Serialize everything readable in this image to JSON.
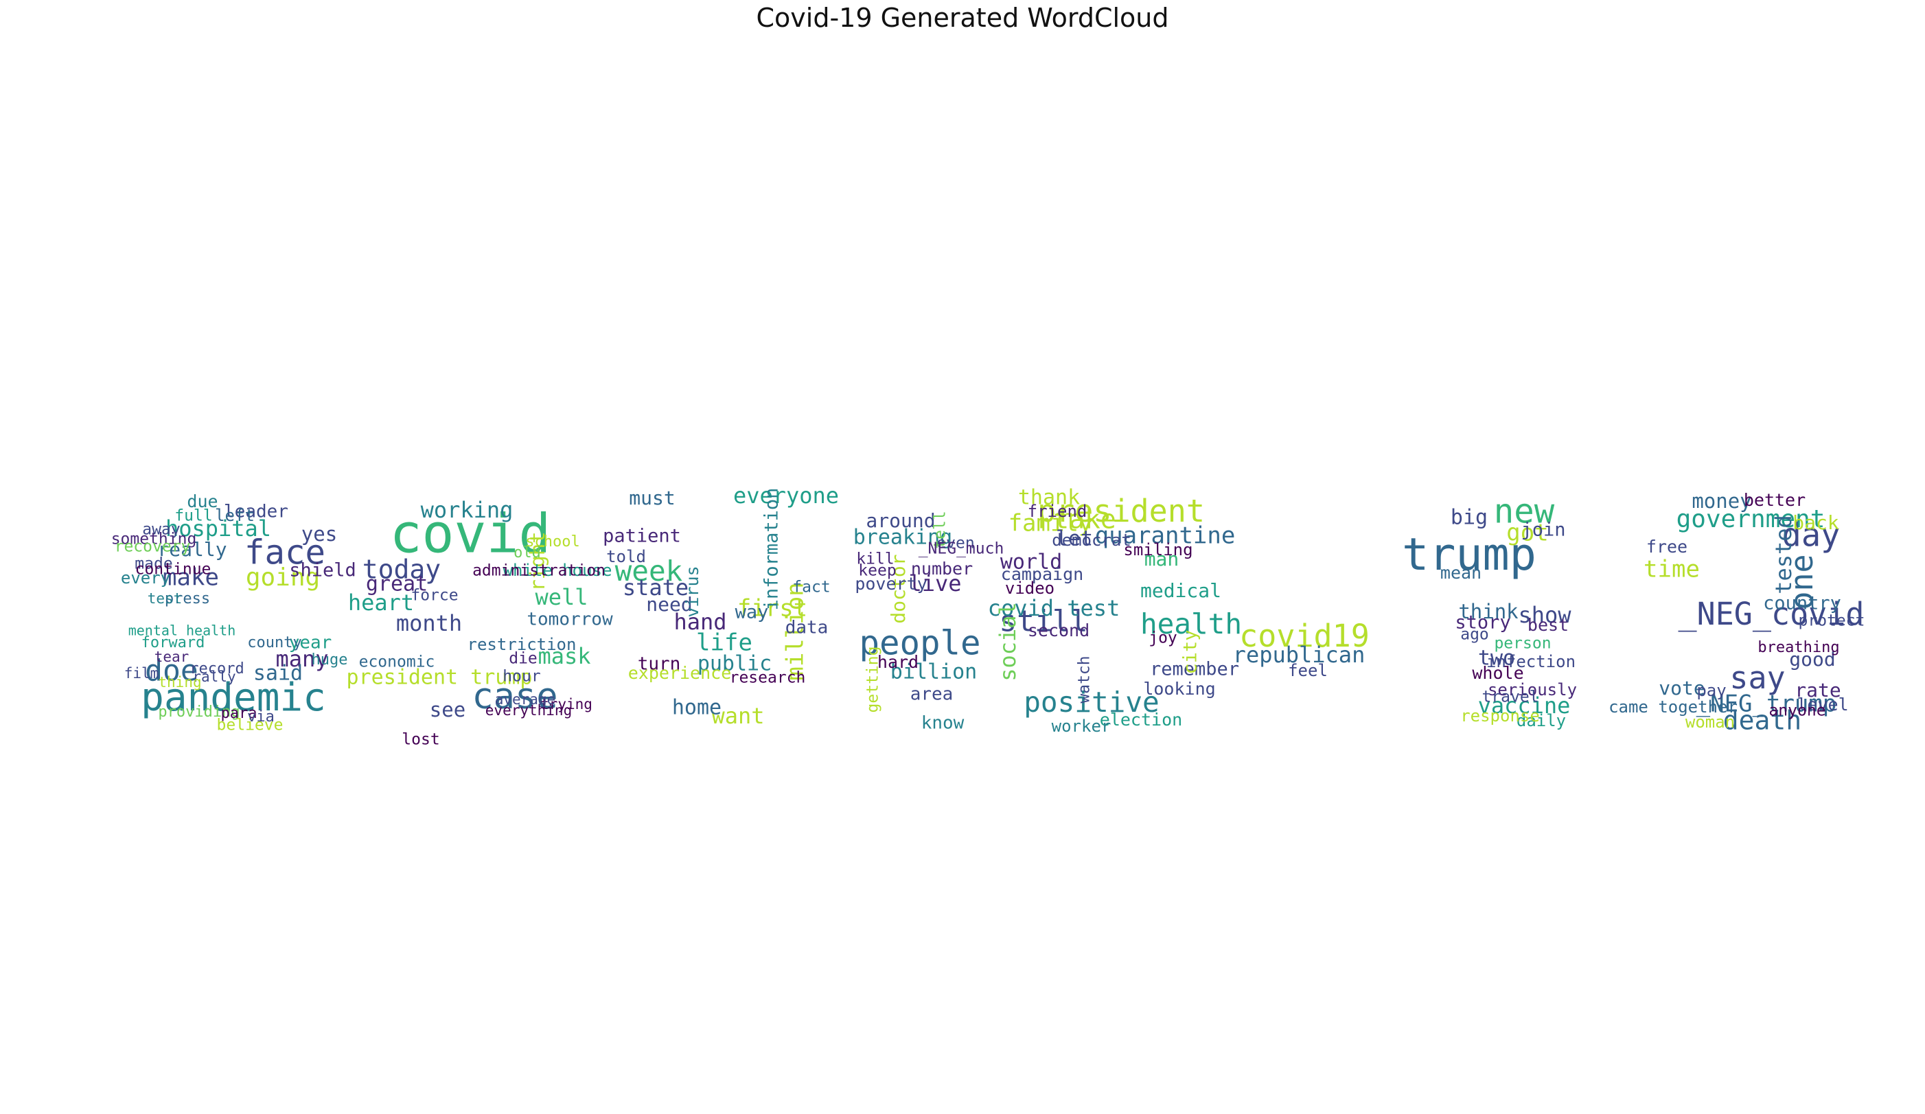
{
  "title": "Covid-19 Generated WordCloud",
  "palette": [
    "#440154",
    "#482878",
    "#3e4989",
    "#31688e",
    "#26828e",
    "#1f9e89",
    "#35b779",
    "#6ece58",
    "#b5de2b",
    "#fde725"
  ],
  "chart_data": {
    "type": "wordcloud",
    "title": "Covid-19 Generated WordCloud",
    "shape_text": "Covid-19",
    "words": [
      {
        "text": "pandemic",
        "weight": 1.0,
        "color": "#26828e"
      },
      {
        "text": "face",
        "weight": 0.85,
        "color": "#3e4989"
      },
      {
        "text": "doe",
        "weight": 0.7,
        "color": "#31688e"
      },
      {
        "text": "going",
        "weight": 0.55,
        "color": "#b5de2b"
      },
      {
        "text": "make",
        "weight": 0.5,
        "color": "#3e4989"
      },
      {
        "text": "hospital",
        "weight": 0.45,
        "color": "#1f9e89"
      },
      {
        "text": "many",
        "weight": 0.45,
        "color": "#482878"
      },
      {
        "text": "said",
        "weight": 0.42,
        "color": "#31688e"
      },
      {
        "text": "yes",
        "weight": 0.38,
        "color": "#3e4989"
      },
      {
        "text": "really",
        "weight": 0.36,
        "color": "#31688e"
      },
      {
        "text": "shield",
        "weight": 0.34,
        "color": "#482878"
      },
      {
        "text": "leader",
        "weight": 0.32,
        "color": "#3e4989"
      },
      {
        "text": "year",
        "weight": 0.32,
        "color": "#1f9e89"
      },
      {
        "text": "due",
        "weight": 0.3,
        "color": "#26828e"
      },
      {
        "text": "left",
        "weight": 0.28,
        "color": "#31688e"
      },
      {
        "text": "every",
        "weight": 0.28,
        "color": "#26828e"
      },
      {
        "text": "away",
        "weight": 0.26,
        "color": "#3e4989"
      },
      {
        "text": "full",
        "weight": 0.26,
        "color": "#1f9e89"
      },
      {
        "text": "something",
        "weight": 0.25,
        "color": "#482878"
      },
      {
        "text": "recovery",
        "weight": 0.25,
        "color": "#6ece58"
      },
      {
        "text": "made",
        "weight": 0.24,
        "color": "#3e4989"
      },
      {
        "text": "continue",
        "weight": 0.24,
        "color": "#440154"
      },
      {
        "text": "press",
        "weight": 0.22,
        "color": "#31688e"
      },
      {
        "text": "forward",
        "weight": 0.22,
        "color": "#1f9e89"
      },
      {
        "text": "record",
        "weight": 0.22,
        "color": "#3e4989"
      },
      {
        "text": "providing",
        "weight": 0.22,
        "color": "#6ece58"
      },
      {
        "text": "believe",
        "weight": 0.24,
        "color": "#b5de2b"
      },
      {
        "text": "para",
        "weight": 0.22,
        "color": "#440154"
      },
      {
        "text": "via",
        "weight": 0.22,
        "color": "#3e4989"
      },
      {
        "text": "huge",
        "weight": 0.22,
        "color": "#26828e"
      },
      {
        "text": "county",
        "weight": 0.22,
        "color": "#31688e"
      },
      {
        "text": "rally",
        "weight": 0.2,
        "color": "#3e4989"
      },
      {
        "text": "thing",
        "weight": 0.2,
        "color": "#b5de2b"
      },
      {
        "text": "test",
        "weight": 0.2,
        "color": "#26828e"
      },
      {
        "text": "tear",
        "weight": 0.2,
        "color": "#482878"
      },
      {
        "text": "film",
        "weight": 0.2,
        "color": "#3e4989"
      },
      {
        "text": "mental health",
        "weight": 0.18,
        "color": "#1f9e89"
      },
      {
        "text": "covid",
        "weight": 1.5,
        "color": "#35b779"
      },
      {
        "text": "case",
        "weight": 0.9,
        "color": "#31688e"
      },
      {
        "text": "today",
        "weight": 0.6,
        "color": "#3e4989"
      },
      {
        "text": "working",
        "weight": 0.45,
        "color": "#26828e"
      },
      {
        "text": "month",
        "weight": 0.45,
        "color": "#3e4989"
      },
      {
        "text": "heart",
        "weight": 0.45,
        "color": "#1f9e89"
      },
      {
        "text": "great",
        "weight": 0.42,
        "color": "#482878"
      },
      {
        "text": "well",
        "weight": 0.45,
        "color": "#35b779"
      },
      {
        "text": "mask",
        "weight": 0.45,
        "color": "#35b779"
      },
      {
        "text": "president trump",
        "weight": 0.42,
        "color": "#b5de2b"
      },
      {
        "text": "see",
        "weight": 0.38,
        "color": "#3e4989"
      },
      {
        "text": "right",
        "weight": 0.38,
        "color": "#b5de2b"
      },
      {
        "text": "tomorrow",
        "weight": 0.32,
        "color": "#31688e"
      },
      {
        "text": "white house",
        "weight": 0.28,
        "color": "#1f9e89"
      },
      {
        "text": "restriction",
        "weight": 0.28,
        "color": "#31688e"
      },
      {
        "text": "administration",
        "weight": 0.25,
        "color": "#440154"
      },
      {
        "text": "force",
        "weight": 0.25,
        "color": "#3e4989"
      },
      {
        "text": "lost",
        "weight": 0.25,
        "color": "#440154"
      },
      {
        "text": "economic",
        "weight": 0.24,
        "color": "#31688e"
      },
      {
        "text": "die",
        "weight": 0.25,
        "color": "#482878"
      },
      {
        "text": "hour",
        "weight": 0.25,
        "color": "#3e4989"
      },
      {
        "text": "school",
        "weight": 0.22,
        "color": "#b5de2b"
      },
      {
        "text": "old",
        "weight": 0.22,
        "color": "#6ece58"
      },
      {
        "text": "everything",
        "weight": 0.2,
        "color": "#440154"
      },
      {
        "text": "trying",
        "weight": 0.2,
        "color": "#440154"
      },
      {
        "text": "average",
        "weight": 0.2,
        "color": "#3e4989"
      },
      {
        "text": "week",
        "weight": 0.65,
        "color": "#35b779"
      },
      {
        "text": "state",
        "weight": 0.45,
        "color": "#3e4989"
      },
      {
        "text": "life",
        "weight": 0.5,
        "color": "#1f9e89"
      },
      {
        "text": "hand",
        "weight": 0.45,
        "color": "#482878"
      },
      {
        "text": "first",
        "weight": 0.5,
        "color": "#b5de2b"
      },
      {
        "text": "million",
        "weight": 0.5,
        "color": "#b5de2b"
      },
      {
        "text": "everyone",
        "weight": 0.45,
        "color": "#1f9e89"
      },
      {
        "text": "want",
        "weight": 0.45,
        "color": "#b5de2b"
      },
      {
        "text": "home",
        "weight": 0.42,
        "color": "#31688e"
      },
      {
        "text": "public",
        "weight": 0.42,
        "color": "#26828e"
      },
      {
        "text": "need",
        "weight": 0.36,
        "color": "#3e4989"
      },
      {
        "text": "must",
        "weight": 0.36,
        "color": "#31688e"
      },
      {
        "text": "patient",
        "weight": 0.34,
        "color": "#482878"
      },
      {
        "text": "information",
        "weight": 0.34,
        "color": "#26828e"
      },
      {
        "text": "way",
        "weight": 0.34,
        "color": "#31688e"
      },
      {
        "text": "data",
        "weight": 0.32,
        "color": "#3e4989"
      },
      {
        "text": "turn",
        "weight": 0.32,
        "color": "#440154"
      },
      {
        "text": "experience",
        "weight": 0.3,
        "color": "#b5de2b"
      },
      {
        "text": "virus",
        "weight": 0.3,
        "color": "#26828e"
      },
      {
        "text": "told",
        "weight": 0.28,
        "color": "#3e4989"
      },
      {
        "text": "fact",
        "weight": 0.26,
        "color": "#31688e"
      },
      {
        "text": "research",
        "weight": 0.25,
        "color": "#440154"
      },
      {
        "text": "people",
        "weight": 0.85,
        "color": "#31688e"
      },
      {
        "text": "live",
        "weight": 0.45,
        "color": "#482878"
      },
      {
        "text": "billion",
        "weight": 0.4,
        "color": "#26828e"
      },
      {
        "text": "breaking",
        "weight": 0.4,
        "color": "#26828e"
      },
      {
        "text": "around",
        "weight": 0.36,
        "color": "#3e4989"
      },
      {
        "text": "doctor",
        "weight": 0.36,
        "color": "#b5de2b"
      },
      {
        "text": "area",
        "weight": 0.32,
        "color": "#3e4989"
      },
      {
        "text": "know",
        "weight": 0.32,
        "color": "#26828e"
      },
      {
        "text": "poverty",
        "weight": 0.3,
        "color": "#3e4989"
      },
      {
        "text": "number",
        "weight": 0.3,
        "color": "#482878"
      },
      {
        "text": "hard",
        "weight": 0.3,
        "color": "#440154"
      },
      {
        "text": "even",
        "weight": 0.26,
        "color": "#3e4989"
      },
      {
        "text": "keep",
        "weight": 0.26,
        "color": "#482878"
      },
      {
        "text": "tell",
        "weight": 0.26,
        "color": "#6ece58"
      },
      {
        "text": "kill",
        "weight": 0.24,
        "color": "#482878"
      },
      {
        "text": "getting",
        "weight": 0.24,
        "color": "#b5de2b"
      },
      {
        "text": "president",
        "weight": 0.75,
        "color": "#b5de2b"
      },
      {
        "text": "take",
        "weight": 0.6,
        "color": "#b5de2b"
      },
      {
        "text": "still",
        "weight": 0.7,
        "color": "#3e4989"
      },
      {
        "text": "positive",
        "weight": 0.65,
        "color": "#26828e"
      },
      {
        "text": "health",
        "weight": 0.65,
        "color": "#1f9e89"
      },
      {
        "text": "quarantine",
        "weight": 0.5,
        "color": "#31688e"
      },
      {
        "text": "family",
        "weight": 0.5,
        "color": "#b5de2b"
      },
      {
        "text": "covid test",
        "weight": 0.45,
        "color": "#26828e"
      },
      {
        "text": "world",
        "weight": 0.42,
        "color": "#482878"
      },
      {
        "text": "social",
        "weight": 0.45,
        "color": "#6ece58"
      },
      {
        "text": "thank",
        "weight": 0.4,
        "color": "#b5de2b"
      },
      {
        "text": "let",
        "weight": 0.4,
        "color": "#3e4989"
      },
      {
        "text": "man",
        "weight": 0.36,
        "color": "#35b779"
      },
      {
        "text": "medical",
        "weight": 0.36,
        "color": "#1f9e89"
      },
      {
        "text": "remember",
        "weight": 0.34,
        "color": "#3e4989"
      },
      {
        "text": "city",
        "weight": 0.34,
        "color": "#b5de2b"
      },
      {
        "text": "looking",
        "weight": 0.3,
        "color": "#3e4989"
      },
      {
        "text": "election",
        "weight": 0.3,
        "color": "#1f9e89"
      },
      {
        "text": "campaign",
        "weight": 0.3,
        "color": "#3e4989"
      },
      {
        "text": "second",
        "weight": 0.3,
        "color": "#482878"
      },
      {
        "text": "friend",
        "weight": 0.28,
        "color": "#482878"
      },
      {
        "text": "democrat",
        "weight": 0.28,
        "color": "#3e4989"
      },
      {
        "text": "smiling",
        "weight": 0.28,
        "color": "#440154"
      },
      {
        "text": "video",
        "weight": 0.28,
        "color": "#440154"
      },
      {
        "text": "worker",
        "weight": 0.28,
        "color": "#26828e"
      },
      {
        "text": "watch",
        "weight": 0.26,
        "color": "#3e4989"
      },
      {
        "text": "joy",
        "weight": 0.26,
        "color": "#440154"
      },
      {
        "text": "covid19",
        "weight": 0.75,
        "color": "#b5de2b"
      },
      {
        "text": "republican",
        "weight": 0.45,
        "color": "#31688e"
      },
      {
        "text": "feel",
        "weight": 0.28,
        "color": "#3e4989"
      },
      {
        "text": "trump",
        "weight": 1.2,
        "color": "#31688e"
      },
      {
        "text": "new",
        "weight": 0.85,
        "color": "#35b779"
      },
      {
        "text": "got",
        "weight": 0.5,
        "color": "#b5de2b"
      },
      {
        "text": "big",
        "weight": 0.4,
        "color": "#3e4989"
      },
      {
        "text": "show",
        "weight": 0.45,
        "color": "#3e4989"
      },
      {
        "text": "think",
        "weight": 0.38,
        "color": "#31688e"
      },
      {
        "text": "story",
        "weight": 0.34,
        "color": "#482878"
      },
      {
        "text": "two",
        "weight": 0.42,
        "color": "#3e4989"
      },
      {
        "text": "vaccine",
        "weight": 0.45,
        "color": "#1f9e89"
      },
      {
        "text": "join",
        "weight": 0.34,
        "color": "#3e4989"
      },
      {
        "text": "mean",
        "weight": 0.3,
        "color": "#31688e"
      },
      {
        "text": "best",
        "weight": 0.3,
        "color": "#482878"
      },
      {
        "text": "whole",
        "weight": 0.3,
        "color": "#440154"
      },
      {
        "text": "infection",
        "weight": 0.28,
        "color": "#3e4989"
      },
      {
        "text": "seriously",
        "weight": 0.28,
        "color": "#482878"
      },
      {
        "text": "daily",
        "weight": 0.28,
        "color": "#1f9e89"
      },
      {
        "text": "response",
        "weight": 0.28,
        "color": "#b5de2b"
      },
      {
        "text": "ago",
        "weight": 0.26,
        "color": "#3e4989"
      },
      {
        "text": "person",
        "weight": 0.26,
        "color": "#35b779"
      },
      {
        "text": "travel",
        "weight": 0.26,
        "color": "#3e4989"
      },
      {
        "text": "one",
        "weight": 0.75,
        "color": "#31688e"
      },
      {
        "text": "day",
        "weight": 0.8,
        "color": "#3e4989"
      },
      {
        "text": "say",
        "weight": 0.75,
        "color": "#3e4989"
      },
      {
        "text": "_NEG_covid",
        "weight": 0.75,
        "color": "#3e4989"
      },
      {
        "text": "death",
        "weight": 0.6,
        "color": "#31688e"
      },
      {
        "text": "government",
        "weight": 0.55,
        "color": "#1f9e89"
      },
      {
        "text": "_NEG_trump",
        "weight": 0.5,
        "color": "#31688e"
      },
      {
        "text": "time",
        "weight": 0.5,
        "color": "#b5de2b"
      },
      {
        "text": "tested",
        "weight": 0.45,
        "color": "#31688e"
      },
      {
        "text": "money",
        "weight": 0.38,
        "color": "#31688e"
      },
      {
        "text": "back",
        "weight": 0.36,
        "color": "#b5de2b"
      },
      {
        "text": "good",
        "weight": 0.36,
        "color": "#3e4989"
      },
      {
        "text": "rate",
        "weight": 0.36,
        "color": "#482878"
      },
      {
        "text": "vote",
        "weight": 0.36,
        "color": "#31688e"
      },
      {
        "text": "country",
        "weight": 0.34,
        "color": "#31688e"
      },
      {
        "text": "better",
        "weight": 0.3,
        "color": "#440154"
      },
      {
        "text": "free",
        "weight": 0.3,
        "color": "#3e4989"
      },
      {
        "text": "level",
        "weight": 0.3,
        "color": "#3e4989"
      },
      {
        "text": "woman",
        "weight": 0.28,
        "color": "#b5de2b"
      },
      {
        "text": "pay",
        "weight": 0.28,
        "color": "#3e4989"
      },
      {
        "text": "came together",
        "weight": 0.28,
        "color": "#31688e"
      },
      {
        "text": "anyone",
        "weight": 0.26,
        "color": "#440154"
      },
      {
        "text": "protect",
        "weight": 0.26,
        "color": "#3e4989"
      },
      {
        "text": "breathing",
        "weight": 0.22,
        "color": "#440154"
      },
      {
        "text": "_NEG_much",
        "weight": 0.26,
        "color": "#482878"
      }
    ]
  }
}
